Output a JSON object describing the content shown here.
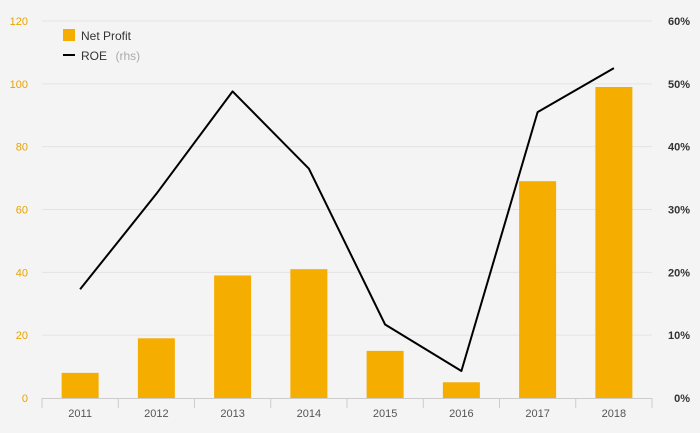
{
  "chart_data": {
    "type": "bar",
    "categories": [
      "2011",
      "2012",
      "2013",
      "2014",
      "2015",
      "2016",
      "2017",
      "2018"
    ],
    "series": [
      {
        "name": "Net Profit",
        "type": "bar",
        "axis": "left",
        "color": "#f5ad00",
        "values": [
          8,
          19,
          39,
          41,
          15,
          5,
          69,
          99
        ]
      },
      {
        "name": "ROE",
        "legend_suffix": "(rhs)",
        "type": "line",
        "axis": "right",
        "color": "#000000",
        "values": [
          17.3,
          32.5,
          48.8,
          36.5,
          11.7,
          4.3,
          45.5,
          52.5
        ]
      }
    ],
    "y_left": {
      "min": 0,
      "max": 120,
      "ticks": [
        "0",
        "20",
        "40",
        "60",
        "80",
        "100",
        "120"
      ]
    },
    "y_right": {
      "min": 0,
      "max": 60,
      "ticks": [
        "0%",
        "10%",
        "20%",
        "30%",
        "40%",
        "50%",
        "60%"
      ]
    },
    "grid": true,
    "legend_position": "top-left"
  }
}
